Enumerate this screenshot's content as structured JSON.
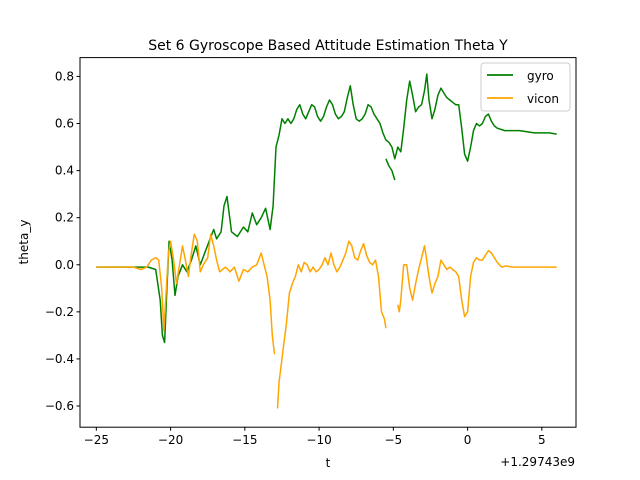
{
  "chart_data": {
    "type": "line",
    "title": "Set 6 Gyroscope Based Attitude Estimation Theta Y",
    "xlabel": "t",
    "ylabel": "theta_y",
    "x_offset_label": "+1.29743e9",
    "xlim": [
      -26.1,
      7.3
    ],
    "ylim": [
      -0.69,
      0.88
    ],
    "xticks": [
      -25,
      -20,
      -15,
      -10,
      -5,
      0,
      5
    ],
    "xtick_labels": [
      "−25",
      "−20",
      "−15",
      "−10",
      "−5",
      "0",
      "5"
    ],
    "yticks": [
      -0.6,
      -0.4,
      -0.2,
      0.0,
      0.2,
      0.4,
      0.6,
      0.8
    ],
    "ytick_labels": [
      "−0.6",
      "−0.4",
      "−0.2",
      "0.0",
      "0.2",
      "0.4",
      "0.6",
      "0.8"
    ],
    "grid": false,
    "legend": "top-right",
    "series": [
      {
        "name": "gyro",
        "color": "#008000",
        "segments": [
          [
            [
              -25.0,
              -0.01
            ],
            [
              -24.0,
              -0.01
            ],
            [
              -23.0,
              -0.01
            ],
            [
              -22.0,
              -0.01
            ],
            [
              -21.5,
              -0.01
            ],
            [
              -21.0,
              -0.02
            ],
            [
              -20.7,
              -0.15
            ],
            [
              -20.55,
              -0.3
            ],
            [
              -20.4,
              -0.33
            ],
            [
              -20.25,
              -0.1
            ],
            [
              -20.1,
              0.1
            ],
            [
              -19.9,
              0.02
            ],
            [
              -19.7,
              -0.13
            ],
            [
              -19.5,
              -0.05
            ],
            [
              -19.2,
              0.0
            ],
            [
              -18.9,
              -0.03
            ],
            [
              -18.6,
              0.02
            ],
            [
              -18.3,
              0.08
            ],
            [
              -18.0,
              0.0
            ],
            [
              -17.7,
              0.05
            ],
            [
              -17.4,
              0.1
            ],
            [
              -17.1,
              0.15
            ],
            [
              -16.9,
              0.11
            ],
            [
              -16.6,
              0.14
            ],
            [
              -16.4,
              0.25
            ],
            [
              -16.2,
              0.29
            ],
            [
              -15.9,
              0.14
            ],
            [
              -15.5,
              0.12
            ],
            [
              -15.1,
              0.16
            ],
            [
              -14.8,
              0.14
            ],
            [
              -14.5,
              0.22
            ],
            [
              -14.2,
              0.17
            ],
            [
              -13.9,
              0.2
            ],
            [
              -13.6,
              0.24
            ],
            [
              -13.3,
              0.15
            ],
            [
              -13.1,
              0.25
            ],
            [
              -12.9,
              0.5
            ],
            [
              -12.7,
              0.55
            ],
            [
              -12.5,
              0.62
            ],
            [
              -12.3,
              0.6
            ],
            [
              -12.1,
              0.62
            ],
            [
              -11.9,
              0.6
            ],
            [
              -11.7,
              0.62
            ],
            [
              -11.5,
              0.66
            ],
            [
              -11.3,
              0.68
            ],
            [
              -11.1,
              0.64
            ],
            [
              -10.9,
              0.62
            ],
            [
              -10.7,
              0.65
            ],
            [
              -10.5,
              0.68
            ],
            [
              -10.3,
              0.67
            ],
            [
              -10.1,
              0.63
            ],
            [
              -9.9,
              0.61
            ],
            [
              -9.7,
              0.63
            ],
            [
              -9.5,
              0.67
            ],
            [
              -9.3,
              0.7
            ],
            [
              -9.1,
              0.68
            ],
            [
              -8.9,
              0.64
            ],
            [
              -8.7,
              0.62
            ],
            [
              -8.5,
              0.63
            ],
            [
              -8.3,
              0.65
            ],
            [
              -8.1,
              0.71
            ],
            [
              -7.9,
              0.76
            ],
            [
              -7.7,
              0.68
            ],
            [
              -7.5,
              0.62
            ],
            [
              -7.3,
              0.61
            ],
            [
              -7.1,
              0.62
            ],
            [
              -6.9,
              0.64
            ],
            [
              -6.7,
              0.68
            ],
            [
              -6.5,
              0.67
            ],
            [
              -6.3,
              0.64
            ],
            [
              -6.1,
              0.62
            ],
            [
              -5.9,
              0.6
            ],
            [
              -5.7,
              0.56
            ],
            [
              -5.5,
              0.53
            ],
            [
              -5.3,
              0.52
            ],
            [
              -5.1,
              0.5
            ],
            [
              -4.9,
              0.45
            ],
            [
              -4.7,
              0.5
            ],
            [
              -4.5,
              0.48
            ],
            [
              -4.3,
              0.58
            ],
            [
              -4.1,
              0.7
            ],
            [
              -3.9,
              0.78
            ],
            [
              -3.7,
              0.72
            ],
            [
              -3.5,
              0.65
            ],
            [
              -3.3,
              0.67
            ],
            [
              -3.1,
              0.68
            ],
            [
              -2.9,
              0.74
            ],
            [
              -2.75,
              0.81
            ],
            [
              -2.6,
              0.7
            ],
            [
              -2.4,
              0.62
            ],
            [
              -2.2,
              0.66
            ],
            [
              -2.0,
              0.72
            ],
            [
              -1.8,
              0.75
            ],
            [
              -1.6,
              0.73
            ],
            [
              -1.4,
              0.71
            ],
            [
              -1.2,
              0.7
            ],
            [
              -1.0,
              0.69
            ],
            [
              -0.8,
              0.68
            ],
            [
              -0.6,
              0.68
            ],
            [
              -0.4,
              0.58
            ],
            [
              -0.2,
              0.47
            ],
            [
              0.0,
              0.44
            ],
            [
              0.2,
              0.5
            ],
            [
              0.4,
              0.57
            ],
            [
              0.6,
              0.6
            ],
            [
              0.8,
              0.59
            ],
            [
              1.0,
              0.6
            ],
            [
              1.2,
              0.63
            ],
            [
              1.4,
              0.64
            ],
            [
              1.6,
              0.61
            ],
            [
              1.8,
              0.59
            ],
            [
              2.0,
              0.58
            ],
            [
              2.5,
              0.57
            ],
            [
              3.0,
              0.57
            ],
            [
              3.5,
              0.57
            ],
            [
              4.0,
              0.565
            ],
            [
              4.5,
              0.56
            ],
            [
              5.0,
              0.56
            ],
            [
              5.5,
              0.56
            ],
            [
              6.0,
              0.555
            ]
          ],
          [
            [
              -5.5,
              0.45
            ],
            [
              -5.3,
              0.42
            ],
            [
              -5.1,
              0.4
            ],
            [
              -4.9,
              0.36
            ]
          ]
        ]
      },
      {
        "name": "vicon",
        "color": "#FFA500",
        "segments": [
          [
            [
              -25.0,
              -0.01
            ],
            [
              -24.0,
              -0.01
            ],
            [
              -23.0,
              -0.01
            ],
            [
              -22.5,
              -0.01
            ],
            [
              -22.0,
              -0.02
            ],
            [
              -21.6,
              -0.01
            ],
            [
              -21.3,
              0.02
            ],
            [
              -21.0,
              0.03
            ],
            [
              -20.8,
              0.02
            ],
            [
              -20.6,
              -0.1
            ],
            [
              -20.45,
              -0.28
            ],
            [
              -20.3,
              -0.12
            ],
            [
              -20.15,
              0.05
            ],
            [
              -20.0,
              0.1
            ],
            [
              -19.8,
              0.02
            ],
            [
              -19.6,
              -0.08
            ],
            [
              -19.4,
              0.0
            ],
            [
              -19.2,
              0.08
            ],
            [
              -19.0,
              0.02
            ],
            [
              -18.8,
              -0.05
            ],
            [
              -18.6,
              0.05
            ],
            [
              -18.4,
              0.13
            ],
            [
              -18.2,
              0.1
            ],
            [
              -18.0,
              -0.03
            ],
            [
              -17.8,
              0.0
            ],
            [
              -17.5,
              0.03
            ],
            [
              -17.3,
              0.13
            ],
            [
              -17.1,
              0.08
            ],
            [
              -16.9,
              0.02
            ],
            [
              -16.7,
              -0.03
            ],
            [
              -16.5,
              -0.02
            ],
            [
              -16.3,
              -0.01
            ],
            [
              -16.0,
              -0.03
            ],
            [
              -15.7,
              -0.01
            ],
            [
              -15.4,
              -0.07
            ],
            [
              -15.1,
              -0.02
            ],
            [
              -14.8,
              -0.03
            ],
            [
              -14.5,
              -0.01
            ],
            [
              -14.2,
              0.0
            ],
            [
              -13.9,
              0.05
            ],
            [
              -13.7,
              0.0
            ],
            [
              -13.5,
              -0.05
            ],
            [
              -13.3,
              -0.15
            ],
            [
              -13.15,
              -0.3
            ],
            [
              -13.0,
              -0.38
            ]
          ],
          [
            [
              -12.8,
              -0.61
            ],
            [
              -12.7,
              -0.5
            ],
            [
              -12.6,
              -0.45
            ],
            [
              -12.4,
              -0.35
            ],
            [
              -12.2,
              -0.25
            ],
            [
              -12.0,
              -0.12
            ],
            [
              -11.8,
              -0.08
            ],
            [
              -11.6,
              -0.05
            ],
            [
              -11.4,
              0.0
            ],
            [
              -11.2,
              -0.03
            ],
            [
              -11.0,
              0.01
            ],
            [
              -10.8,
              0.0
            ],
            [
              -10.6,
              -0.03
            ],
            [
              -10.4,
              -0.01
            ],
            [
              -10.2,
              -0.03
            ],
            [
              -10.0,
              -0.02
            ],
            [
              -9.8,
              0.0
            ],
            [
              -9.6,
              0.03
            ],
            [
              -9.4,
              0.0
            ],
            [
              -9.2,
              0.05
            ],
            [
              -9.0,
              0.0
            ],
            [
              -8.8,
              -0.03
            ],
            [
              -8.6,
              -0.01
            ],
            [
              -8.4,
              0.02
            ],
            [
              -8.2,
              0.05
            ],
            [
              -8.0,
              0.1
            ],
            [
              -7.8,
              0.08
            ],
            [
              -7.6,
              0.03
            ],
            [
              -7.4,
              0.02
            ],
            [
              -7.2,
              0.06
            ],
            [
              -7.0,
              0.09
            ],
            [
              -6.8,
              0.04
            ],
            [
              -6.6,
              0.01
            ],
            [
              -6.4,
              0.0
            ],
            [
              -6.2,
              0.02
            ],
            [
              -6.0,
              -0.05
            ],
            [
              -5.8,
              -0.2
            ],
            [
              -5.6,
              -0.23
            ],
            [
              -5.5,
              -0.27
            ]
          ],
          [
            [
              -4.7,
              -0.17
            ],
            [
              -4.6,
              -0.2
            ],
            [
              -4.5,
              -0.15
            ],
            [
              -4.3,
              0.0
            ],
            [
              -4.1,
              0.0
            ],
            [
              -3.9,
              -0.1
            ],
            [
              -3.7,
              -0.15
            ],
            [
              -3.5,
              -0.08
            ],
            [
              -3.3,
              -0.02
            ],
            [
              -3.1,
              0.03
            ],
            [
              -2.9,
              0.08
            ],
            [
              -2.8,
              0.04
            ],
            [
              -2.6,
              -0.05
            ],
            [
              -2.4,
              -0.12
            ],
            [
              -2.2,
              -0.08
            ],
            [
              -2.0,
              -0.05
            ],
            [
              -1.8,
              0.02
            ],
            [
              -1.6,
              0.0
            ],
            [
              -1.4,
              -0.02
            ],
            [
              -1.2,
              -0.01
            ],
            [
              -1.0,
              -0.02
            ],
            [
              -0.8,
              -0.03
            ],
            [
              -0.6,
              -0.05
            ],
            [
              -0.4,
              -0.15
            ],
            [
              -0.2,
              -0.22
            ],
            [
              0.0,
              -0.2
            ],
            [
              0.2,
              -0.05
            ],
            [
              0.4,
              0.01
            ],
            [
              0.6,
              0.03
            ],
            [
              0.8,
              0.02
            ],
            [
              1.0,
              0.02
            ],
            [
              1.2,
              0.04
            ],
            [
              1.4,
              0.06
            ],
            [
              1.6,
              0.05
            ],
            [
              1.8,
              0.03
            ],
            [
              2.0,
              0.01
            ],
            [
              2.3,
              -0.01
            ],
            [
              2.6,
              -0.005
            ],
            [
              3.0,
              -0.01
            ],
            [
              3.5,
              -0.01
            ],
            [
              4.0,
              -0.01
            ],
            [
              4.5,
              -0.01
            ],
            [
              5.0,
              -0.01
            ],
            [
              5.5,
              -0.01
            ],
            [
              6.0,
              -0.01
            ]
          ]
        ]
      }
    ]
  }
}
